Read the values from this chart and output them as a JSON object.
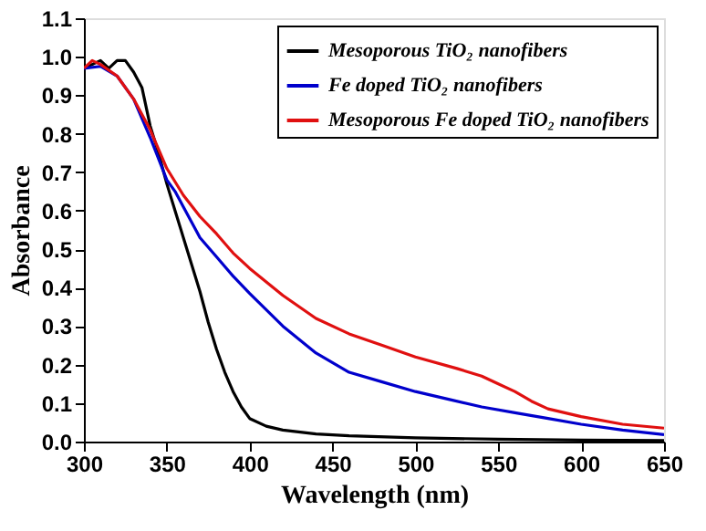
{
  "chart_data": {
    "type": "line",
    "xlabel": "Wavelength (nm)",
    "ylabel": "Absorbance",
    "xlim": [
      300,
      650
    ],
    "xticks": [
      300,
      350,
      400,
      450,
      500,
      550,
      600,
      650
    ],
    "ylim": [
      0,
      1.1
    ],
    "yticks": [
      {
        "value": 0,
        "label": "0.0"
      },
      0.1,
      0.2,
      0.3,
      0.4,
      0.5,
      0.6,
      0.7,
      0.8,
      0.9,
      {
        "value": 1,
        "label": "1.0"
      },
      1.1
    ],
    "legend": "top right",
    "grid": false,
    "line_style": "solid",
    "marker": "none",
    "series": [
      {
        "name": "Mesoporous  TiO₂ nanofibers",
        "color": "#000000",
        "x": [
          300,
          305,
          310,
          315,
          320,
          325,
          330,
          335,
          340,
          345,
          350,
          355,
          360,
          365,
          370,
          375,
          380,
          385,
          390,
          395,
          400,
          410,
          420,
          440,
          460,
          500,
          550,
          600,
          650
        ],
        "values": [
          0.97,
          0.98,
          0.99,
          0.97,
          0.99,
          0.99,
          0.96,
          0.92,
          0.82,
          0.75,
          0.67,
          0.6,
          0.53,
          0.46,
          0.39,
          0.31,
          0.24,
          0.18,
          0.13,
          0.09,
          0.06,
          0.04,
          0.03,
          0.02,
          0.015,
          0.01,
          0.006,
          0.004,
          0.003
        ]
      },
      {
        "name": "Fe doped TiO₂ nanofibers",
        "color": "#0000cc",
        "x": [
          300,
          310,
          320,
          330,
          340,
          350,
          355,
          360,
          370,
          380,
          390,
          400,
          420,
          440,
          460,
          480,
          500,
          520,
          540,
          560,
          580,
          600,
          625,
          650
        ],
        "values": [
          0.97,
          0.975,
          0.95,
          0.89,
          0.79,
          0.68,
          0.65,
          0.61,
          0.53,
          0.48,
          0.43,
          0.385,
          0.3,
          0.23,
          0.18,
          0.155,
          0.13,
          0.11,
          0.09,
          0.075,
          0.06,
          0.045,
          0.03,
          0.018
        ]
      },
      {
        "name": "Mesoporous Fe doped TiO₂ nanofibers",
        "color": "#e01010",
        "x": [
          300,
          305,
          310,
          320,
          330,
          340,
          350,
          360,
          370,
          380,
          390,
          400,
          420,
          440,
          460,
          480,
          500,
          525,
          540,
          550,
          560,
          570,
          580,
          600,
          625,
          650
        ],
        "values": [
          0.97,
          0.99,
          0.98,
          0.95,
          0.89,
          0.81,
          0.71,
          0.64,
          0.585,
          0.54,
          0.49,
          0.45,
          0.38,
          0.32,
          0.28,
          0.25,
          0.22,
          0.19,
          0.17,
          0.15,
          0.13,
          0.105,
          0.085,
          0.065,
          0.045,
          0.035
        ]
      }
    ]
  }
}
